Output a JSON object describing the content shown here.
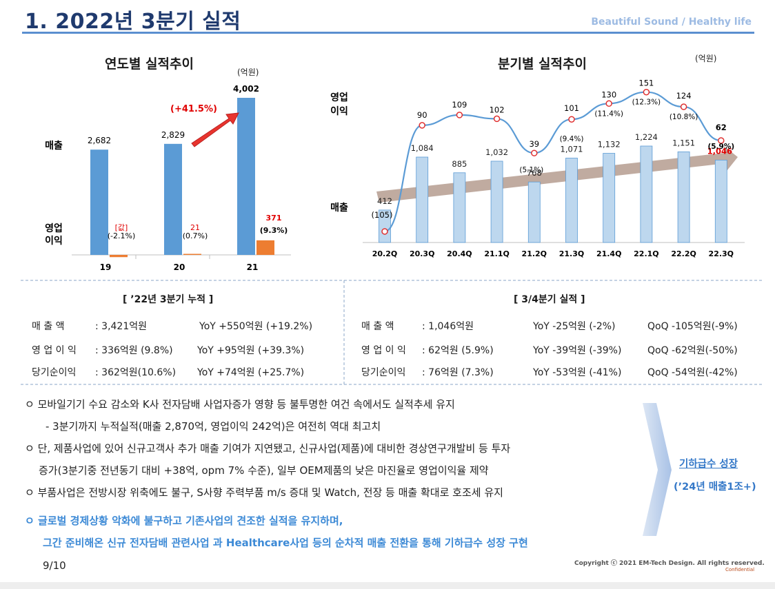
{
  "header": {
    "title": "1.  2022년 3분기 실적",
    "slogan": "Beautiful Sound / Healthy life"
  },
  "colors": {
    "accent": "#1f3a6e",
    "bar_sales": "#5b9bd5",
    "bar_profit": "#ed7d31",
    "quarter_bar": "#bdd7ee",
    "line": "#5b9bd5",
    "highlight": "#e00000"
  },
  "chart_data": [
    {
      "type": "bar",
      "title": "연도별 실적추이",
      "unit": "(억원)",
      "categories": [
        "19",
        "20",
        "21"
      ],
      "series": [
        {
          "name": "매출",
          "values": [
            2682,
            2829,
            4002
          ],
          "labels": [
            "2,682",
            "2,829",
            "4,002"
          ]
        },
        {
          "name": "영업이익",
          "values": [
            -57,
            21,
            371
          ],
          "labels": [
            "[값]",
            "21",
            "371"
          ],
          "margin_labels": [
            "(-2.1%)",
            "(0.7%)",
            "(9.3%)"
          ]
        }
      ],
      "annotation": "(+41.5%)",
      "row_labels": {
        "sales": "매출",
        "profit_line1": "영업",
        "profit_line2": "이익"
      }
    },
    {
      "type": "bar+line",
      "title": "분기별 실적추이",
      "unit": "(억원)",
      "categories": [
        "20.2Q",
        "20.3Q",
        "20.4Q",
        "21.1Q",
        "21.2Q",
        "21.3Q",
        "21.4Q",
        "22.1Q",
        "22.2Q",
        "22.3Q"
      ],
      "series": [
        {
          "name": "매출",
          "values": [
            412,
            1084,
            885,
            1032,
            768,
            1071,
            1132,
            1224,
            1151,
            1046
          ],
          "labels": [
            "412",
            "1,084",
            "885",
            "1,032",
            "768",
            "1,071",
            "1,132",
            "1,224",
            "1,151",
            "1,046"
          ]
        },
        {
          "name": "영업이익",
          "values": [
            -105,
            90,
            109,
            102,
            39,
            101,
            130,
            151,
            124,
            62
          ],
          "labels": [
            "(105)",
            "90",
            "109",
            "102",
            "39",
            "101",
            "130",
            "151",
            "124",
            "62"
          ],
          "margin_labels": [
            "",
            "",
            "",
            "",
            "(5.1%)",
            "(9.4%)",
            "(11.4%)",
            "(12.3%)",
            "(10.8%)",
            "(5.9%)"
          ]
        }
      ],
      "row_labels": {
        "profit_line1": "영업",
        "profit_line2": "이익",
        "sales": "매출"
      }
    }
  ],
  "cumulative": {
    "heading": "[ ’22년 3분기 누적 ]",
    "rows": [
      {
        "label": "매  출  액",
        "value": ": 3,421억원",
        "yoy": "YoY +550억원 (+19.2%)"
      },
      {
        "label": "영 업 이 익",
        "value": ":   336억원  (9.8%)",
        "yoy": "YoY +95억원   (+39.3%)"
      },
      {
        "label": "당기순이익",
        "value": ":   362억원(10.6%)",
        "yoy": "YoY +74억원   (+25.7%)"
      }
    ]
  },
  "quarter": {
    "heading": "[ 3/4분기 실적 ]",
    "rows": [
      {
        "label": "매  출  액",
        "value": ": 1,046억원",
        "yoy": "YoY  -25억원 (-2%)",
        "qoq": "QoQ  -105억원(-9%)"
      },
      {
        "label": "영 업 이 익",
        "value": ":     62억원 (5.9%)",
        "yoy": "YoY  -39억원 (-39%)",
        "qoq": "QoQ    -62억원(-50%)"
      },
      {
        "label": "당기순이익",
        "value": ":     76억원 (7.3%)",
        "yoy": "YoY  -53억원 (-41%)",
        "qoq": "QoQ    -54억원(-42%)"
      }
    ]
  },
  "bullets": [
    "ㅇ  모바일기기 수요 감소와 K사 전자담배 사업자증가 영향 등 불투명한 여건 속에서도 실적추세 유지",
    "- 3분기까지 누적실적(매출 2,870억, 영업이익 242억)은 여전히 역대 최고치",
    "ㅇ  단, 제품사업에 있어 신규고객사 추가 매출 기여가 지연됐고, 신규사업(제품)에 대비한 경상연구개발비 등 투자",
    "증가(3분기중 전년동기 대비 +38억, opm 7% 수준), 일부 OEM제품의 낮은 마진율로 영업이익율 제약",
    "ㅇ  부품사업은 전방시장 위축에도 불구, S사향 주력부품 m/s 증대 및 Watch, 전장 등 매출 확대로 호조세 유지"
  ],
  "highlight_bullets": [
    "ㅇ  글로벌 경제상황 악화에 불구하고 기존사업의 견조한 실적을 유지하며,",
    "그간 준비해온 신규 전자담배 관련사업 과 Healthcare사업 등의 순차적 매출 전환을 통해 기하급수 성장 구현"
  ],
  "growth": {
    "label": "기하급수 성장",
    "sub": "(’24년 매출1조+)"
  },
  "footer": {
    "page": "9/10",
    "copyright": "Copyright ⓒ 2021 EM-Tech Design. All rights reserved.",
    "confidential": "Confidential"
  }
}
